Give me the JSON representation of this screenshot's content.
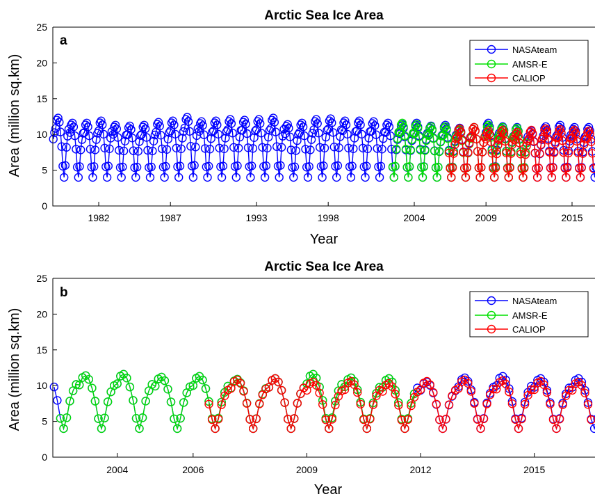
{
  "chart_data": [
    {
      "type": "line",
      "panel_label": "a",
      "title": "Arctic Sea Ice Area",
      "xlabel": "Year",
      "ylabel": "Area (million sq.km)",
      "xlim": [
        1978.8,
        2016.6
      ],
      "ylim": [
        0,
        25
      ],
      "yticks": [
        "0",
        "5",
        "10",
        "15",
        "20",
        "25"
      ],
      "xticks": [
        "1982",
        "1987",
        "1993",
        "1998",
        "2004",
        "2009",
        "2015"
      ],
      "grid": false,
      "legend_position": "top-right",
      "seasonal_cycle": [
        11.7,
        12.9,
        13.2,
        12.6,
        11.2,
        9.1,
        6.3,
        4.7,
        6.4,
        9.0,
        10.6,
        11.6
      ],
      "series": [
        {
          "name": "NASAteam",
          "color": "#0000ff",
          "range": [
            1978.8,
            2016.6
          ],
          "level": [
            11.7,
            12.3,
            11.6,
            11.6,
            11.9,
            11.3,
            11.2,
            11.3,
            11.7,
            11.9,
            12.4,
            11.8,
            11.9,
            12.1,
            12.0,
            12.1,
            12.3,
            11.4,
            11.6,
            12.1,
            12.2,
            11.9,
            11.9,
            11.8,
            11.6,
            11.4,
            11.6,
            11.2,
            11.3,
            10.9,
            11.0,
            11.6,
            11.1,
            11.0,
            10.5,
            11.1,
            11.3,
            11.0,
            11.0
          ]
        },
        {
          "name": "AMSR-E",
          "color": "#00e000",
          "range": [
            2002.5,
            2011.8
          ],
          "level": [
            11.8,
            11.6,
            11.4,
            11.1,
            11.1,
            10.7,
            11.0,
            11.3,
            11.0,
            10.9
          ]
        },
        {
          "name": "CALIOP",
          "color": "#ff0000",
          "range": [
            2006.4,
            2016.5
          ],
          "level": [
            10.6,
            10.8,
            11.0,
            10.5,
            10.6,
            10.3,
            10.6,
            10.8,
            10.7,
            10.6,
            10.5
          ]
        }
      ]
    },
    {
      "type": "line",
      "panel_label": "b",
      "title": "Arctic Sea Ice Area",
      "xlabel": "Year",
      "ylabel": "Area (million sq.km)",
      "xlim": [
        2002.3,
        2016.6
      ],
      "ylim": [
        0,
        25
      ],
      "yticks": [
        "0",
        "5",
        "10",
        "15",
        "20",
        "25"
      ],
      "xticks": [
        "2004",
        "2006",
        "2009",
        "2012",
        "2015"
      ],
      "grid": false,
      "legend_position": "top-right",
      "seasonal_cycle": [
        11.7,
        12.9,
        13.2,
        12.6,
        11.2,
        9.1,
        6.3,
        4.7,
        6.4,
        9.0,
        10.6,
        11.6
      ],
      "series": [
        {
          "name": "NASAteam",
          "color": "#0000ff",
          "range": [
            2002.3,
            2016.6
          ],
          "level": [
            11.6,
            11.4,
            11.6,
            11.2,
            11.3,
            10.9,
            11.0,
            11.6,
            11.1,
            11.0,
            10.5,
            11.1,
            11.3,
            11.0,
            11.0
          ]
        },
        {
          "name": "AMSR-E",
          "color": "#00e000",
          "range": [
            2002.5,
            2011.8
          ],
          "level": [
            11.6,
            11.4,
            11.6,
            11.2,
            11.3,
            10.9,
            11.0,
            11.6,
            11.1,
            11.0
          ]
        },
        {
          "name": "CALIOP",
          "color": "#ff0000",
          "range": [
            2006.4,
            2016.5
          ],
          "level": [
            10.6,
            10.8,
            11.0,
            10.5,
            10.6,
            10.3,
            10.6,
            10.8,
            10.7,
            10.6,
            10.5
          ]
        }
      ]
    }
  ]
}
